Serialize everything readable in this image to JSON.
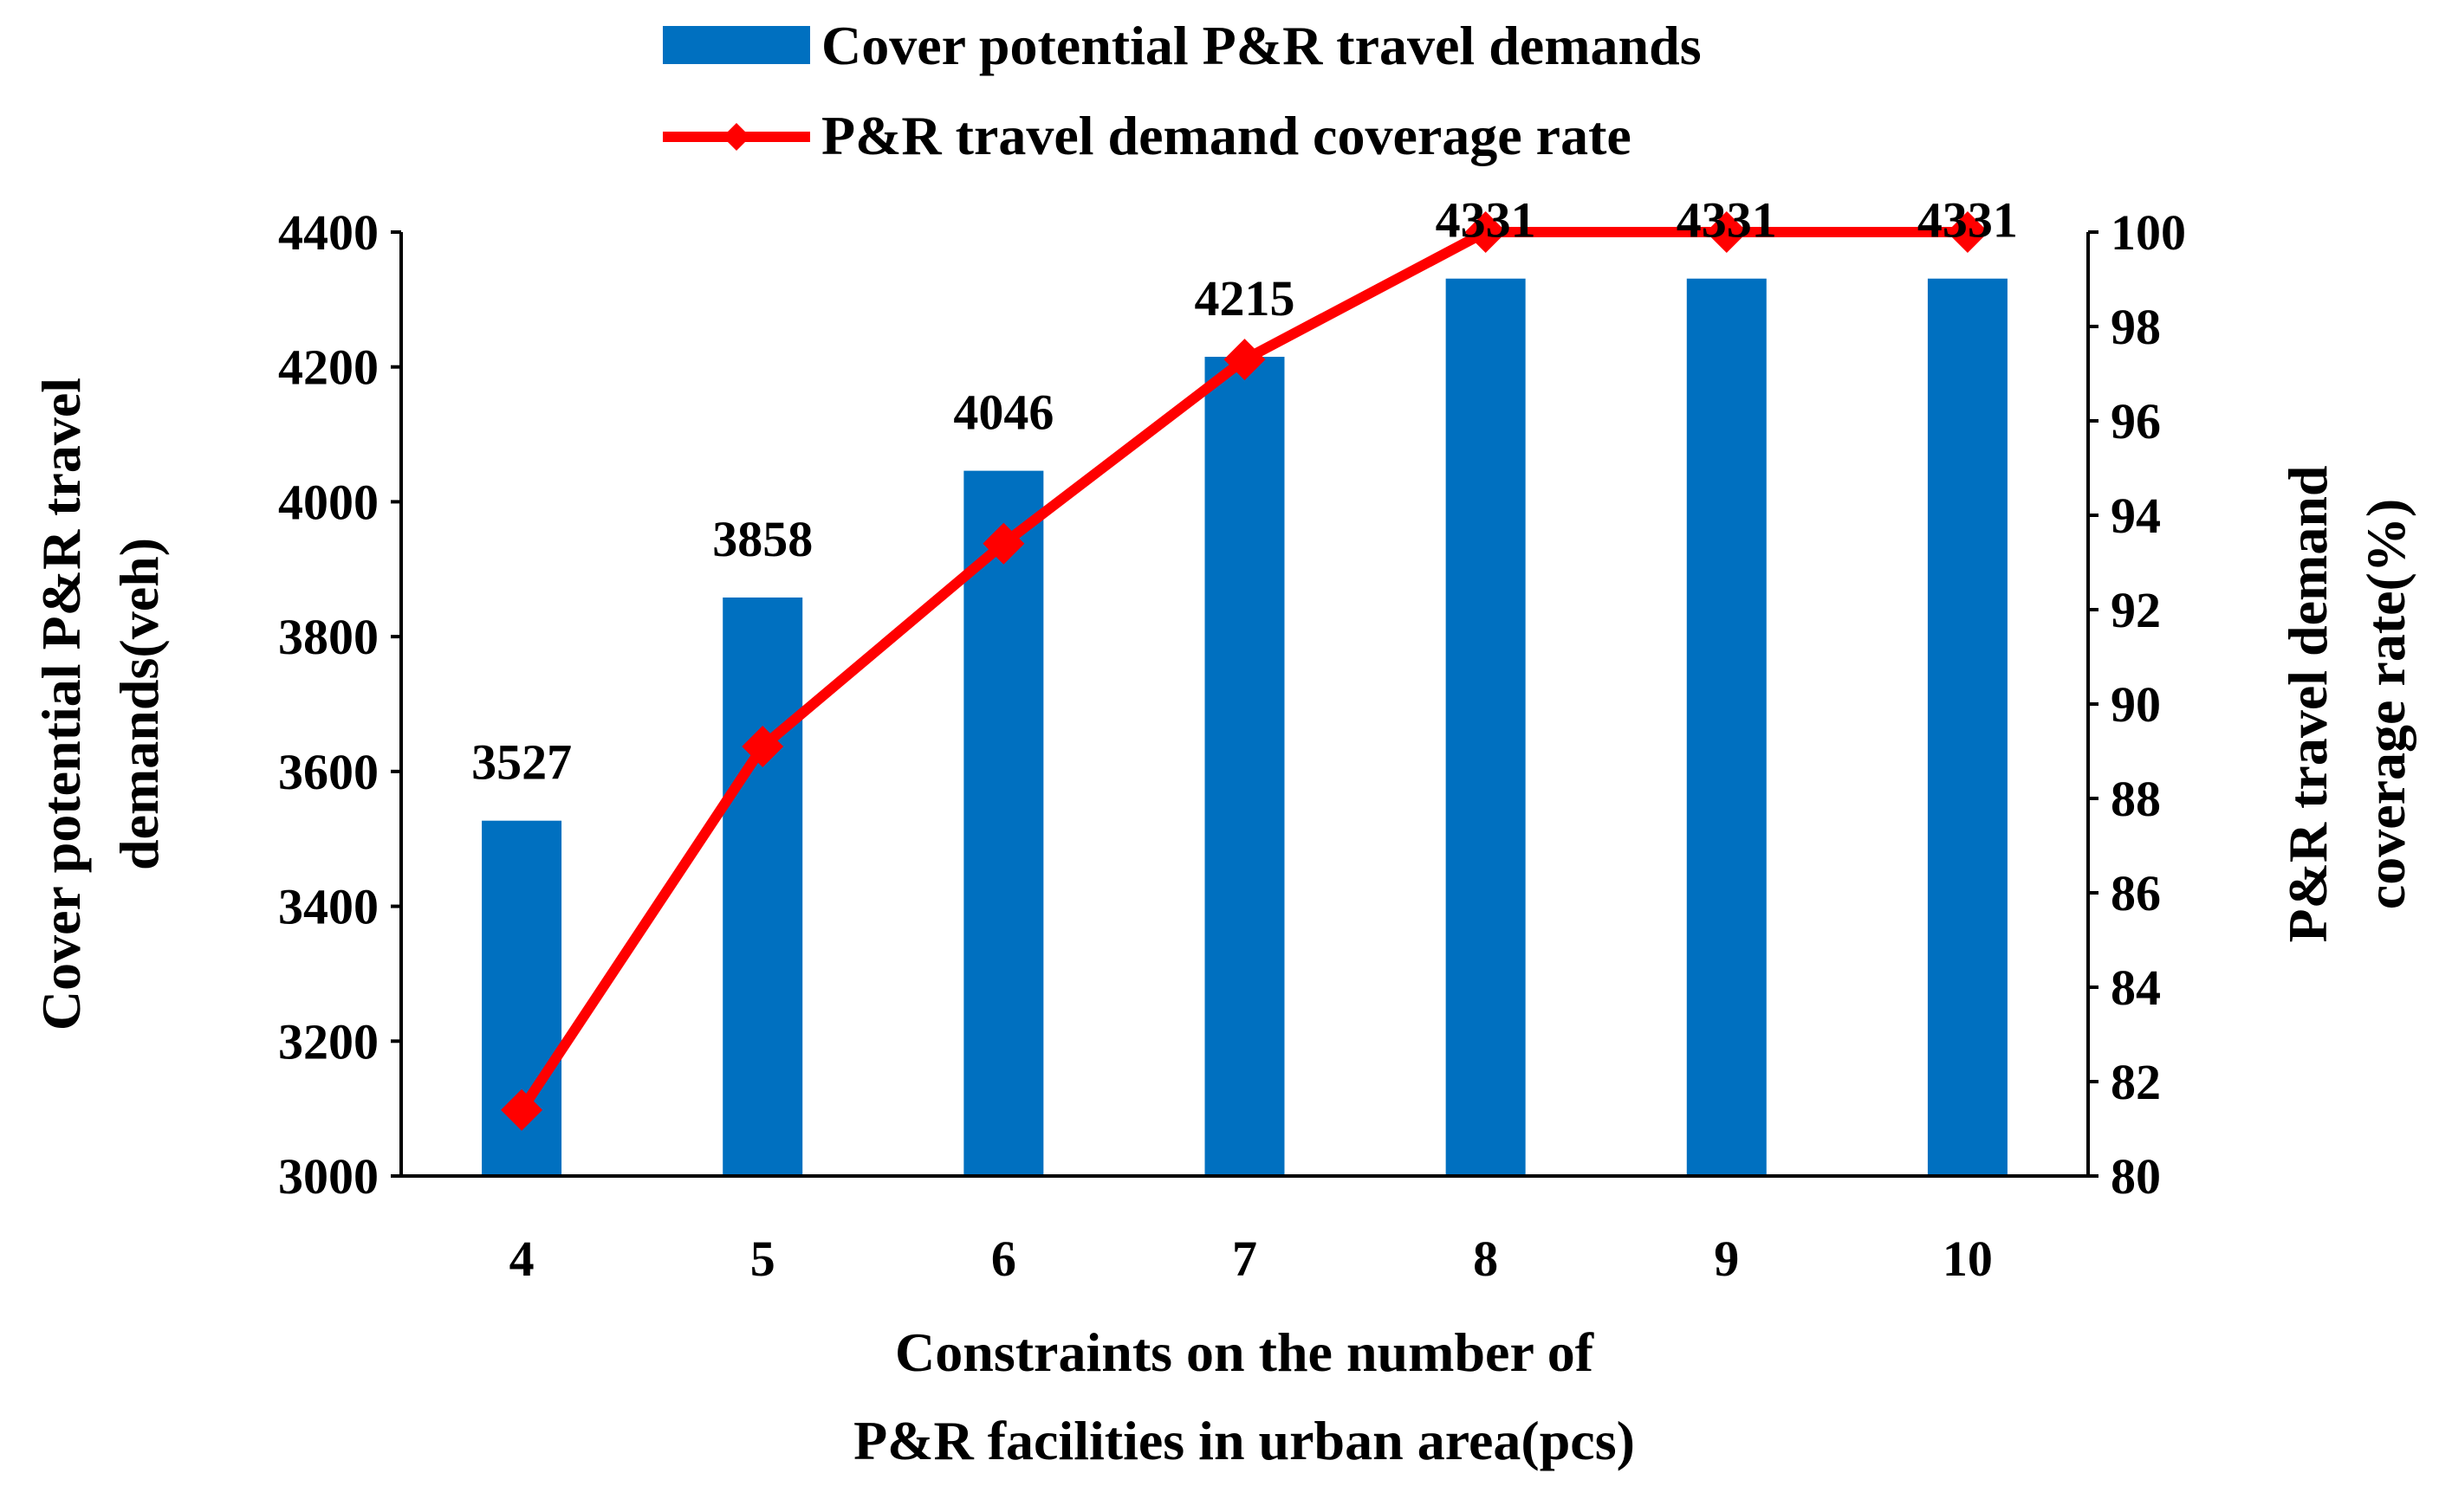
{
  "chart_data": {
    "type": "bar",
    "categories": [
      "4",
      "5",
      "6",
      "7",
      "8",
      "9",
      "10"
    ],
    "series": [
      {
        "name": "Cover potential P&R travel demands",
        "type": "bar",
        "axis": "left",
        "values": [
          3527,
          3858,
          4046,
          4215,
          4331,
          4331,
          4331
        ],
        "color": "#0070C0"
      },
      {
        "name": "P&R travel demand coverage rate",
        "type": "line",
        "axis": "right",
        "values": [
          81.4,
          89.1,
          93.4,
          97.3,
          100,
          100,
          100
        ],
        "color": "#FF0000"
      }
    ],
    "data_labels": [
      "3527",
      "3858",
      "4046",
      "4215",
      "4331",
      "4331",
      "4331"
    ],
    "xlabel_lines": [
      "Constraints on the number of",
      "P&R facilities in urban area(pcs)"
    ],
    "ylabel_left_lines": [
      "Cover potential P&R travel",
      "demands(veh)"
    ],
    "ylabel_right_lines": [
      "P&R travel demand",
      "coverage rate(%)"
    ],
    "ylim_left": [
      3000,
      4400
    ],
    "yticks_left": [
      3000,
      3200,
      3400,
      3600,
      3800,
      4000,
      4200,
      4400
    ],
    "ylim_right": [
      80,
      100
    ],
    "yticks_right": [
      80,
      82,
      84,
      86,
      88,
      90,
      92,
      94,
      96,
      98,
      100
    ],
    "legend_position": "top",
    "grid": false
  }
}
